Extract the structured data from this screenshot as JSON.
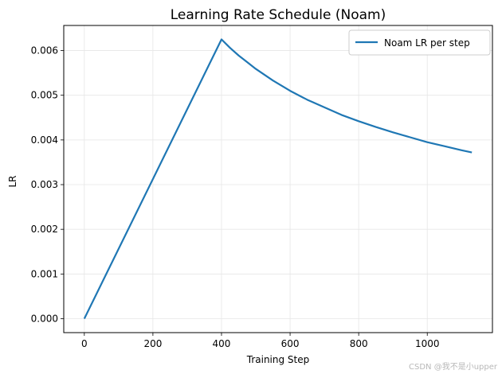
{
  "chart_data": {
    "type": "line",
    "title": "Learning Rate Schedule (Noam)",
    "xlabel": "Training Step",
    "ylabel": "LR",
    "xlim": [
      -60,
      1190
    ],
    "ylim": [
      -0.000312,
      0.006562
    ],
    "xticks": [
      0,
      200,
      400,
      600,
      800,
      1000
    ],
    "xtick_labels": [
      "0",
      "200",
      "400",
      "600",
      "800",
      "1000"
    ],
    "yticks": [
      0.0,
      0.001,
      0.002,
      0.003,
      0.004,
      0.005,
      0.006
    ],
    "ytick_labels": [
      "0.000",
      "0.001",
      "0.002",
      "0.003",
      "0.004",
      "0.005",
      "0.006"
    ],
    "grid": true,
    "legend_position": "top-right",
    "series": [
      {
        "name": "Noam LR per step",
        "color": "#1f77b4",
        "x": [
          0,
          400,
          425,
          450,
          475,
          500,
          550,
          600,
          650,
          700,
          750,
          800,
          850,
          900,
          950,
          1000,
          1050,
          1100,
          1130
        ],
        "y": [
          0.0,
          0.00625,
          0.00606,
          0.00589,
          0.00574,
          0.00559,
          0.00533,
          0.0051,
          0.0049,
          0.00473,
          0.00456,
          0.00442,
          0.00429,
          0.00417,
          0.00406,
          0.00395,
          0.00386,
          0.00377,
          0.00372
        ]
      }
    ]
  },
  "watermark": "CSDN @我不是小upper"
}
